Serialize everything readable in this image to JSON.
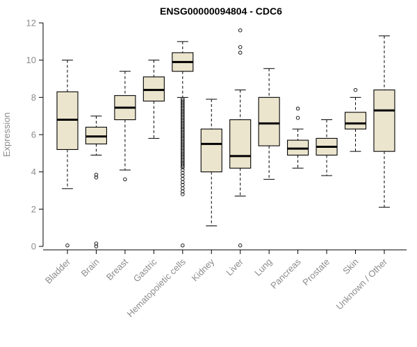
{
  "chart_data": {
    "type": "boxplot",
    "title": "ENSG00000094804 - CDC6",
    "ylabel": "Expression",
    "xlabel": "",
    "ylim": [
      0,
      12
    ],
    "yticks": [
      0,
      2,
      4,
      6,
      8,
      10,
      12
    ],
    "grid": false,
    "legend": "none",
    "box_fill": "#ECE5CE",
    "box_stroke": "#000000",
    "axis_color": "#000000",
    "label_color": "#8c8c8c",
    "categories": [
      "Bladder",
      "Brain",
      "Breast",
      "Gastric",
      "Hematopoietic cells",
      "Kidney",
      "Liver",
      "Lung",
      "Pancreas",
      "Prostate",
      "Skin",
      "Unknown / Other"
    ],
    "boxes": [
      {
        "category": "Bladder",
        "low": 3.1,
        "q1": 5.2,
        "median": 6.8,
        "q3": 8.3,
        "high": 10.0,
        "outliers": [
          0.05
        ]
      },
      {
        "category": "Brain",
        "low": 4.9,
        "q1": 5.5,
        "median": 5.9,
        "q3": 6.4,
        "high": 7.0,
        "outliers": [
          3.85,
          3.7,
          0.15,
          0.0
        ]
      },
      {
        "category": "Breast",
        "low": 4.1,
        "q1": 6.8,
        "median": 7.45,
        "q3": 8.1,
        "high": 9.4,
        "outliers": [
          3.6
        ]
      },
      {
        "category": "Gastric",
        "low": 5.8,
        "q1": 7.8,
        "median": 8.4,
        "q3": 9.1,
        "high": 10.0,
        "outliers": []
      },
      {
        "category": "Hematopoietic cells",
        "low": 8.0,
        "q1": 9.4,
        "median": 9.9,
        "q3": 10.4,
        "high": 11.0,
        "outliers": [
          7.92,
          7.84,
          7.76,
          7.68,
          7.6,
          7.52,
          7.44,
          7.36,
          7.28,
          7.2,
          7.12,
          7.04,
          6.96,
          6.88,
          6.8,
          6.72,
          6.64,
          6.56,
          6.48,
          6.4,
          6.32,
          6.24,
          6.16,
          6.08,
          6.0,
          5.92,
          5.84,
          5.76,
          5.68,
          5.6,
          5.52,
          5.44,
          5.36,
          5.28,
          5.2,
          5.12,
          5.04,
          4.96,
          4.88,
          4.8,
          4.72,
          4.64,
          4.56,
          4.48,
          4.4,
          4.32,
          4.24,
          4.1,
          3.95,
          3.8,
          3.62,
          3.45,
          3.3,
          3.12,
          2.95,
          2.8,
          0.05
        ]
      },
      {
        "category": "Kidney",
        "low": 1.1,
        "q1": 4.0,
        "median": 5.5,
        "q3": 6.3,
        "high": 7.9,
        "outliers": []
      },
      {
        "category": "Liver",
        "low": 2.7,
        "q1": 4.2,
        "median": 4.85,
        "q3": 6.8,
        "high": 8.4,
        "outliers": [
          11.6,
          10.7,
          10.4,
          0.05
        ]
      },
      {
        "category": "Lung",
        "low": 3.6,
        "q1": 5.4,
        "median": 6.6,
        "q3": 8.0,
        "high": 9.55,
        "outliers": []
      },
      {
        "category": "Pancreas",
        "low": 4.2,
        "q1": 4.9,
        "median": 5.25,
        "q3": 5.7,
        "high": 6.3,
        "outliers": [
          7.4,
          6.9
        ]
      },
      {
        "category": "Prostate",
        "low": 3.8,
        "q1": 4.9,
        "median": 5.35,
        "q3": 5.8,
        "high": 6.8,
        "outliers": []
      },
      {
        "category": "Skin",
        "low": 5.1,
        "q1": 6.3,
        "median": 6.6,
        "q3": 7.2,
        "high": 8.0,
        "outliers": [
          8.4
        ]
      },
      {
        "category": "Unknown / Other",
        "low": 2.1,
        "q1": 5.1,
        "median": 7.3,
        "q3": 8.4,
        "high": 11.3,
        "outliers": []
      }
    ]
  }
}
